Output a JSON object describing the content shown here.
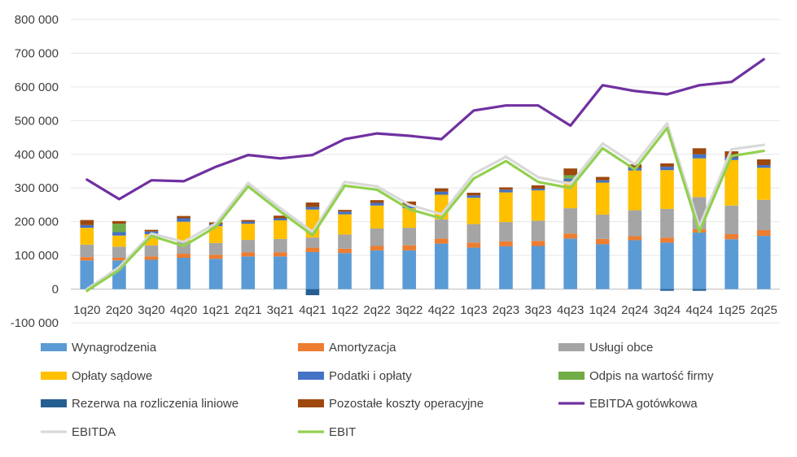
{
  "chart_data": {
    "type": "bar",
    "stacked": true,
    "categories": [
      "1q20",
      "2q20",
      "3q20",
      "4q20",
      "1q21",
      "2q21",
      "3q21",
      "4q21",
      "1q22",
      "2q22",
      "3q22",
      "4q22",
      "1q23",
      "2q23",
      "3q23",
      "4q23",
      "1q24",
      "2q24",
      "3q24",
      "4q24",
      "1q25",
      "2q25"
    ],
    "ylim": [
      -100000,
      800000
    ],
    "yticks": [
      -100000,
      0,
      100000,
      200000,
      300000,
      400000,
      500000,
      600000,
      700000,
      800000
    ],
    "ytick_labels": [
      "-100 000",
      "0",
      "100 000",
      "200 000",
      "300 000",
      "400 000",
      "500 000",
      "600 000",
      "700 000",
      "800 000"
    ],
    "grid": true,
    "legend_position": "bottom",
    "series": [
      {
        "name": "Wynagrodzenia",
        "kind": "bar",
        "color": "#5B9BD5",
        "values": [
          85000,
          85000,
          87000,
          93000,
          90000,
          97000,
          97000,
          110000,
          107000,
          115000,
          115000,
          135000,
          123000,
          127000,
          128000,
          150000,
          133000,
          145000,
          138000,
          168000,
          148000,
          158000
        ]
      },
      {
        "name": "Amortyzacja",
        "kind": "bar",
        "color": "#ED7D31",
        "values": [
          10000,
          8000,
          10000,
          12000,
          12000,
          12000,
          12000,
          13000,
          13000,
          13000,
          15000,
          15000,
          15000,
          15000,
          15000,
          15000,
          16000,
          12000,
          15000,
          10000,
          15000,
          17000
        ]
      },
      {
        "name": "Usługi obce",
        "kind": "bar",
        "color": "#A5A5A5",
        "values": [
          37000,
          33000,
          33000,
          35000,
          35000,
          37000,
          40000,
          30000,
          42000,
          52000,
          52000,
          57000,
          55000,
          57000,
          60000,
          75000,
          72000,
          77000,
          85000,
          95000,
          85000,
          90000
        ]
      },
      {
        "name": "Opłaty sądowe",
        "kind": "bar",
        "color": "#FFC000",
        "values": [
          50000,
          33000,
          33000,
          60000,
          50000,
          48000,
          55000,
          83000,
          60000,
          68000,
          58000,
          73000,
          78000,
          88000,
          90000,
          80000,
          95000,
          118000,
          115000,
          115000,
          135000,
          95000
        ]
      },
      {
        "name": "Podatki i opłaty",
        "kind": "bar",
        "color": "#4472C4",
        "values": [
          8000,
          10000,
          8000,
          10000,
          6000,
          6000,
          6000,
          8000,
          8000,
          8000,
          8000,
          9000,
          7000,
          8000,
          5000,
          8000,
          7000,
          8000,
          10000,
          12000,
          8000,
          8000
        ]
      },
      {
        "name": "Odpis na wartość firmy",
        "kind": "bar",
        "color": "#70AD47",
        "values": [
          0,
          25000,
          0,
          0,
          0,
          0,
          0,
          0,
          0,
          0,
          0,
          0,
          0,
          0,
          0,
          10000,
          0,
          0,
          0,
          0,
          0,
          0
        ]
      },
      {
        "name": "Rezerwa na rozliczenia liniowe",
        "kind": "bar",
        "color": "#255E91",
        "values": [
          0,
          0,
          0,
          0,
          0,
          0,
          0,
          -18000,
          0,
          0,
          0,
          0,
          0,
          0,
          0,
          0,
          0,
          0,
          -5000,
          -5000,
          0,
          0
        ]
      },
      {
        "name": "Pozostałe koszty operacyjne",
        "kind": "bar",
        "color": "#9E480E",
        "values": [
          15000,
          8000,
          5000,
          7000,
          5000,
          5000,
          8000,
          13000,
          5000,
          8000,
          12000,
          10000,
          8000,
          7000,
          10000,
          20000,
          10000,
          10000,
          10000,
          18000,
          18000,
          17000
        ]
      },
      {
        "name": "EBITDA gotówkowa",
        "kind": "line",
        "color": "#7030A0",
        "values": [
          325000,
          267000,
          323000,
          320000,
          363000,
          398000,
          388000,
          398000,
          445000,
          462000,
          455000,
          445000,
          530000,
          545000,
          545000,
          485000,
          605000,
          588000,
          578000,
          605000,
          615000,
          682000
        ]
      },
      {
        "name": "EBITDA",
        "kind": "line",
        "color": "#D9D9D9",
        "values": [
          0,
          65000,
          165000,
          140000,
          195000,
          315000,
          240000,
          170000,
          318000,
          305000,
          250000,
          222000,
          342000,
          393000,
          332000,
          312000,
          432000,
          370000,
          492000,
          185000,
          415000,
          428000
        ]
      },
      {
        "name": "EBIT",
        "kind": "line",
        "color": "#92D050",
        "values": [
          -5000,
          57000,
          158000,
          128000,
          185000,
          305000,
          230000,
          160000,
          307000,
          295000,
          237000,
          210000,
          328000,
          380000,
          318000,
          300000,
          418000,
          355000,
          478000,
          170000,
          395000,
          410000
        ]
      }
    ]
  }
}
